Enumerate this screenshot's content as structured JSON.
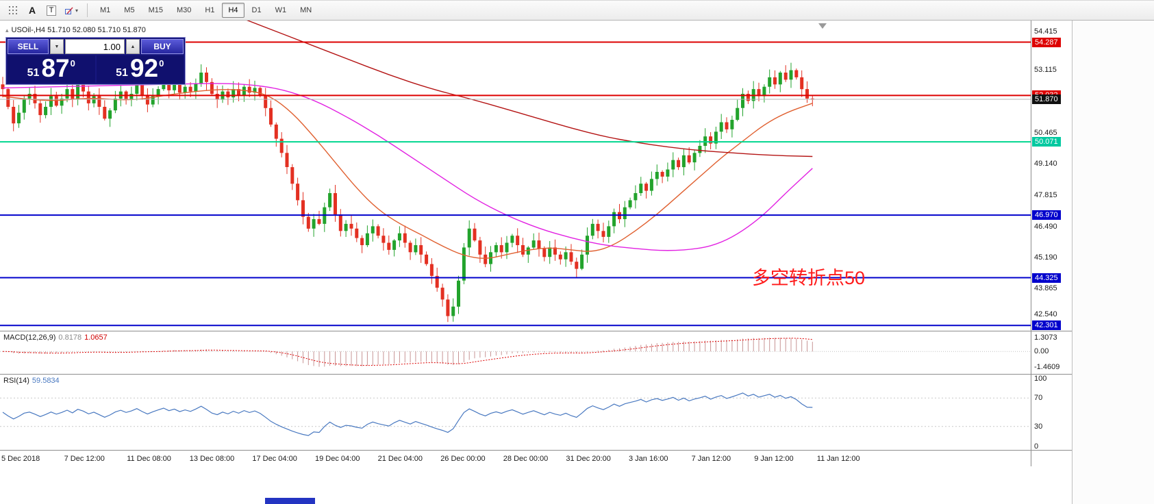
{
  "toolbar": {
    "icons": [
      {
        "name": "grid-icon",
        "glyph": ""
      },
      {
        "name": "text-label-icon",
        "glyph": "A"
      },
      {
        "name": "text-box-icon",
        "glyph": "T"
      },
      {
        "name": "shapes-icon",
        "glyph": ""
      }
    ],
    "timeframes": [
      {
        "label": "M1",
        "active": false
      },
      {
        "label": "M5",
        "active": false
      },
      {
        "label": "M15",
        "active": false
      },
      {
        "label": "M30",
        "active": false
      },
      {
        "label": "H1",
        "active": false
      },
      {
        "label": "H4",
        "active": true
      },
      {
        "label": "D1",
        "active": false
      },
      {
        "label": "W1",
        "active": false
      },
      {
        "label": "MN",
        "active": false
      }
    ]
  },
  "chart": {
    "symbol_line": "USOil-,H4  51.710 52.080 51.710 51.870",
    "trade_panel": {
      "sell_label": "SELL",
      "buy_label": "BUY",
      "volume": "1.00",
      "sell_price": {
        "small": "51",
        "big": "87",
        "sup": "0"
      },
      "buy_price": {
        "small": "51",
        "big": "92",
        "sup": "0"
      }
    },
    "annotation": {
      "text": "多空转折点50",
      "color": "#ff1a1a"
    }
  },
  "macd_panel": {
    "title": "MACD(12,26,9)",
    "value_main": "0.8178",
    "value_signal": "1.0657",
    "axis_labels": [
      "1.3073",
      "0.00",
      "-1.4609"
    ]
  },
  "rsi_panel": {
    "title": "RSI(14)",
    "value": "59.5834",
    "axis_labels": [
      "100",
      "70",
      "30",
      "0"
    ]
  },
  "time_axis": [
    "5 Dec 2018",
    "7 Dec 12:00",
    "11 Dec 08:00",
    "13 Dec 08:00",
    "17 Dec 04:00",
    "19 Dec 04:00",
    "21 Dec 04:00",
    "26 Dec 00:00",
    "28 Dec 00:00",
    "31 Dec 20:00",
    "3 Jan 16:00",
    "7 Jan 12:00",
    "9 Jan 12:00",
    "11 Jan 12:00"
  ],
  "chart_data": {
    "type": "candlestick",
    "symbol": "USOil-",
    "timeframe": "H4",
    "ohlc_display": {
      "open": "51.710",
      "high": "52.080",
      "low": "51.710",
      "close": "51.870"
    },
    "price_range": {
      "min": 42.05,
      "max": 55.2
    },
    "candles": {
      "first_open": 52.5,
      "up_color": "#22a32c",
      "down_color": "#e33022",
      "closes": [
        52.3,
        51.55,
        50.85,
        51.3,
        51.9,
        52.1,
        51.7,
        51.2,
        51.55,
        52.0,
        51.6,
        51.9,
        52.3,
        51.85,
        52.5,
        52.2,
        51.7,
        52.0,
        51.55,
        51.05,
        51.4,
        51.9,
        52.2,
        51.85,
        52.1,
        52.5,
        52.05,
        51.65,
        52.0,
        52.3,
        52.6,
        52.25,
        52.5,
        52.15,
        52.4,
        52.2,
        52.55,
        53.0,
        52.6,
        52.1,
        51.85,
        52.2,
        51.95,
        52.3,
        52.05,
        52.4,
        52.15,
        52.35,
        52.05,
        51.5,
        50.8,
        50.2,
        49.6,
        49.0,
        48.3,
        47.6,
        46.9,
        46.4,
        46.8,
        46.6,
        47.3,
        47.9,
        47.0,
        46.3,
        46.6,
        46.4,
        46.0,
        45.7,
        46.2,
        46.5,
        46.1,
        45.8,
        45.5,
        45.9,
        46.2,
        45.8,
        45.4,
        45.7,
        45.3,
        44.9,
        44.4,
        43.9,
        43.4,
        42.7,
        43.1,
        44.2,
        45.6,
        46.4,
        45.9,
        45.3,
        44.9,
        45.4,
        45.7,
        45.4,
        45.8,
        46.1,
        45.7,
        45.3,
        45.6,
        45.9,
        45.55,
        45.2,
        45.6,
        45.3,
        45.1,
        45.4,
        45.0,
        44.7,
        45.3,
        46.1,
        46.6,
        46.3,
        46.05,
        46.5,
        47.1,
        46.8,
        47.3,
        47.6,
        47.9,
        48.3,
        48.0,
        48.5,
        48.8,
        48.6,
        48.9,
        49.3,
        49.0,
        49.5,
        49.2,
        49.6,
        49.9,
        50.3,
        50.0,
        50.5,
        50.9,
        50.6,
        51.0,
        51.5,
        52.1,
        51.8,
        52.3,
        52.0,
        52.4,
        52.8,
        52.5,
        53.0,
        52.7,
        53.1,
        52.8,
        52.3,
        51.9,
        51.87
      ]
    },
    "axis_ticks": [
      54.415,
      53.115,
      50.465,
      49.14,
      47.815,
      46.49,
      45.19,
      43.865,
      42.54
    ],
    "levels": [
      {
        "value": 54.287,
        "color": "#dd0000",
        "width": 2,
        "badge_bg": "#dd0000",
        "badge_fg": "#ffffff"
      },
      {
        "value": 52.032,
        "color": "#dd0000",
        "width": 2,
        "badge_bg": "#dd0000",
        "badge_fg": "#ffffff"
      },
      {
        "value": 51.87,
        "color": "#b6b6b6",
        "width": 1,
        "badge_bg": "#111111",
        "badge_fg": "#ffffff"
      },
      {
        "value": 50.071,
        "color": "#00d68f",
        "width": 2,
        "badge_bg": "#00c9a0",
        "badge_fg": "#ffffff"
      },
      {
        "value": 46.97,
        "color": "#0000cc",
        "width": 2,
        "badge_bg": "#0000cc",
        "badge_fg": "#ffffff"
      },
      {
        "value": 44.325,
        "color": "#0000cc",
        "width": 2,
        "badge_bg": "#0000cc",
        "badge_fg": "#ffffff"
      },
      {
        "value": 42.301,
        "color": "#0000cc",
        "width": 2,
        "badge_bg": "#0000cc",
        "badge_fg": "#ffffff"
      }
    ],
    "moving_averages": [
      {
        "name": "fast-ma",
        "color": "#e06030",
        "points": [
          [
            0,
            52.0
          ],
          [
            8,
            51.75
          ],
          [
            16,
            51.95
          ],
          [
            24,
            51.8
          ],
          [
            32,
            52.1
          ],
          [
            40,
            52.3
          ],
          [
            46,
            52.25
          ],
          [
            50,
            52.0
          ],
          [
            54,
            51.3
          ],
          [
            58,
            50.3
          ],
          [
            62,
            49.2
          ],
          [
            66,
            48.1
          ],
          [
            70,
            47.2
          ],
          [
            74,
            46.6
          ],
          [
            78,
            46.15
          ],
          [
            82,
            45.65
          ],
          [
            86,
            45.25
          ],
          [
            90,
            45.1
          ],
          [
            94,
            45.3
          ],
          [
            98,
            45.5
          ],
          [
            102,
            45.6
          ],
          [
            106,
            45.5
          ],
          [
            110,
            45.4
          ],
          [
            114,
            45.7
          ],
          [
            118,
            46.3
          ],
          [
            122,
            47.0
          ],
          [
            126,
            47.8
          ],
          [
            130,
            48.6
          ],
          [
            134,
            49.4
          ],
          [
            138,
            50.1
          ],
          [
            142,
            50.8
          ],
          [
            146,
            51.3
          ],
          [
            151,
            51.7
          ]
        ]
      },
      {
        "name": "mid-ma",
        "color": "#e222e2",
        "points": [
          [
            0,
            52.35
          ],
          [
            10,
            52.4
          ],
          [
            20,
            52.45
          ],
          [
            30,
            52.5
          ],
          [
            40,
            52.55
          ],
          [
            46,
            52.5
          ],
          [
            52,
            52.3
          ],
          [
            58,
            51.85
          ],
          [
            64,
            51.15
          ],
          [
            70,
            50.35
          ],
          [
            76,
            49.45
          ],
          [
            82,
            48.55
          ],
          [
            88,
            47.65
          ],
          [
            94,
            46.95
          ],
          [
            100,
            46.4
          ],
          [
            106,
            46.0
          ],
          [
            112,
            45.7
          ],
          [
            118,
            45.55
          ],
          [
            124,
            45.45
          ],
          [
            130,
            45.55
          ],
          [
            134,
            45.8
          ],
          [
            138,
            46.3
          ],
          [
            142,
            47.0
          ],
          [
            146,
            47.9
          ],
          [
            151,
            48.95
          ]
        ]
      },
      {
        "name": "slow-ma",
        "color": "#b41414",
        "points": [
          [
            40,
            55.7
          ],
          [
            48,
            55.0
          ],
          [
            56,
            54.3
          ],
          [
            64,
            53.6
          ],
          [
            72,
            52.9
          ],
          [
            80,
            52.3
          ],
          [
            87,
            51.9
          ],
          [
            94,
            51.45
          ],
          [
            100,
            51.05
          ],
          [
            106,
            50.65
          ],
          [
            112,
            50.3
          ],
          [
            118,
            50.05
          ],
          [
            124,
            49.85
          ],
          [
            130,
            49.7
          ],
          [
            136,
            49.6
          ],
          [
            143,
            49.5
          ],
          [
            151,
            49.45
          ]
        ]
      }
    ],
    "macd": {
      "display_max": 1.3073,
      "display_min": -1.4609,
      "range": [
        1.9,
        -2.2
      ],
      "bar_color": "#c79494",
      "signal_color": "#dd0000"
    },
    "rsi": {
      "period": 14,
      "last_value": 59.5834,
      "levels": [
        70,
        30
      ],
      "color": "#4878c0",
      "scale": [
        0,
        100
      ]
    }
  }
}
